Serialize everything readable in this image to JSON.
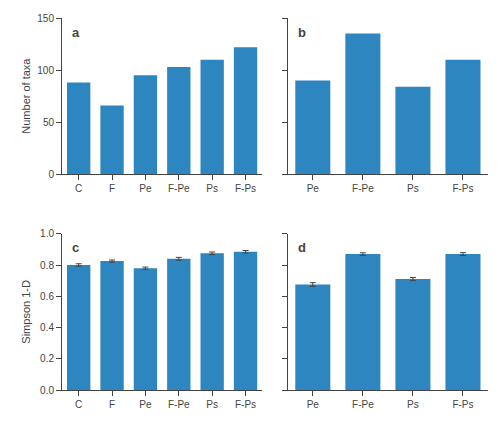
{
  "chart_data": [
    {
      "type": "bar",
      "categories": [
        "C",
        "F",
        "Pe",
        "F-Pe",
        "Ps",
        "F-Ps"
      ],
      "values": [
        88,
        66,
        95,
        103,
        110,
        122
      ],
      "ylabel": "Number of taxa",
      "ylim": [
        0,
        150
      ],
      "yticks": [
        0,
        50,
        100,
        150
      ],
      "annotations": [
        "a"
      ],
      "color": "#2e86c1",
      "grid": false
    },
    {
      "type": "bar",
      "categories": [
        "Pe",
        "F-Pe",
        "Ps",
        "F-Ps"
      ],
      "values": [
        90,
        135,
        84,
        110
      ],
      "ylim": [
        0,
        150
      ],
      "yticks": [
        0,
        50,
        100,
        150
      ],
      "tick_labels": "x",
      "annotations": [
        "b"
      ],
      "color": "#2e86c1",
      "grid": false
    },
    {
      "type": "bar",
      "categories": [
        "C",
        "F",
        "Pe",
        "F-Pe",
        "Ps",
        "F-Ps"
      ],
      "values": [
        0.8,
        0.825,
        0.78,
        0.84,
        0.875,
        0.885
      ],
      "errors": [
        0.008,
        0.007,
        0.007,
        0.009,
        0.008,
        0.008
      ],
      "ylabel": "Simpson 1-D",
      "ylim": [
        0,
        1
      ],
      "yticks": [
        {
          "value": 0,
          "label": "0.0"
        },
        0.2,
        0.4,
        0.6,
        0.8,
        {
          "value": 1,
          "label": "1.0"
        }
      ],
      "annotations": [
        "c"
      ],
      "color": "#2e86c1",
      "grid": false
    },
    {
      "type": "bar",
      "categories": [
        "Pe",
        "F-Pe",
        "Ps",
        "F-Ps"
      ],
      "values": [
        0.675,
        0.87,
        0.71,
        0.87
      ],
      "errors": [
        0.012,
        0.008,
        0.01,
        0.009
      ],
      "ylim": [
        0,
        1
      ],
      "yticks": [
        {
          "value": 0,
          "label": "0.0"
        },
        0.2,
        0.4,
        0.6,
        0.8,
        {
          "value": 1,
          "label": "1.0"
        }
      ],
      "tick_labels": "x",
      "annotations": [
        "d"
      ],
      "color": "#2e86c1",
      "grid": false
    }
  ]
}
